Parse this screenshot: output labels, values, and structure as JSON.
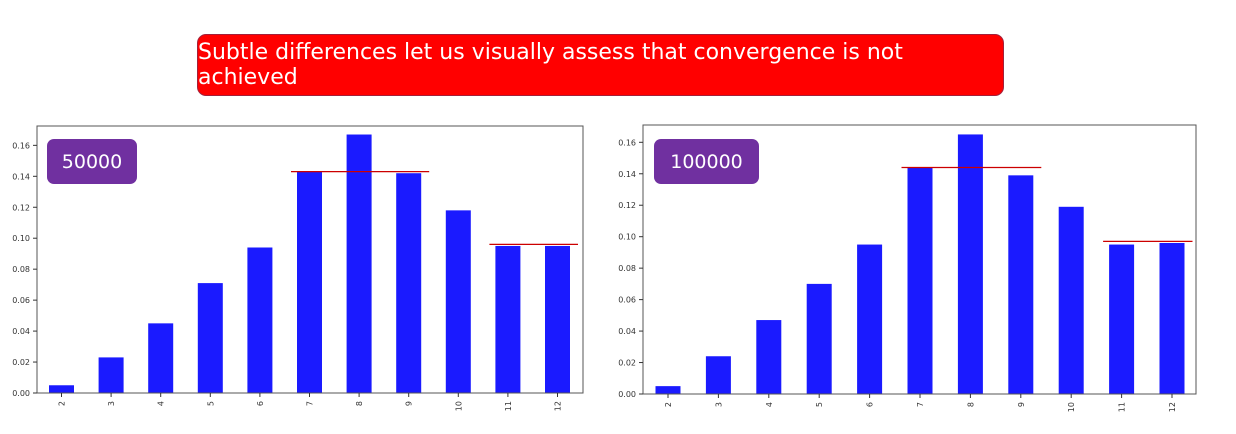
{
  "banner": {
    "text": "Subtle differences let us visually assess that convergence is not achieved"
  },
  "chart_data": [
    {
      "type": "bar",
      "badge": "50000",
      "categories": [
        "2",
        "3",
        "4",
        "5",
        "6",
        "7",
        "8",
        "9",
        "10",
        "11",
        "12"
      ],
      "values": [
        0.005,
        0.023,
        0.045,
        0.071,
        0.094,
        0.143,
        0.167,
        0.142,
        0.118,
        0.095,
        0.095
      ],
      "yticks": [
        "0.00",
        "0.02",
        "0.04",
        "0.06",
        "0.08",
        "0.10",
        "0.12",
        "0.14",
        "0.16"
      ],
      "ylim": [
        0,
        0.1725
      ],
      "reference_lines": [
        {
          "from": "7",
          "to": "9",
          "value": 0.143
        },
        {
          "from": "11",
          "to": "12",
          "value": 0.096
        }
      ],
      "bar_color": "#1a1aff",
      "ref_line_color": "#cc0000"
    },
    {
      "type": "bar",
      "badge": "100000",
      "categories": [
        "2",
        "3",
        "4",
        "5",
        "6",
        "7",
        "8",
        "9",
        "10",
        "11",
        "12"
      ],
      "values": [
        0.005,
        0.024,
        0.047,
        0.07,
        0.095,
        0.144,
        0.165,
        0.139,
        0.119,
        0.095,
        0.096
      ],
      "yticks": [
        "0.00",
        "0.02",
        "0.04",
        "0.06",
        "0.08",
        "0.10",
        "0.12",
        "0.14",
        "0.16"
      ],
      "ylim": [
        0,
        0.171
      ],
      "reference_lines": [
        {
          "from": "7",
          "to": "9",
          "value": 0.144
        },
        {
          "from": "11",
          "to": "12",
          "value": 0.097
        }
      ],
      "bar_color": "#1a1aff",
      "ref_line_color": "#cc0000"
    }
  ]
}
